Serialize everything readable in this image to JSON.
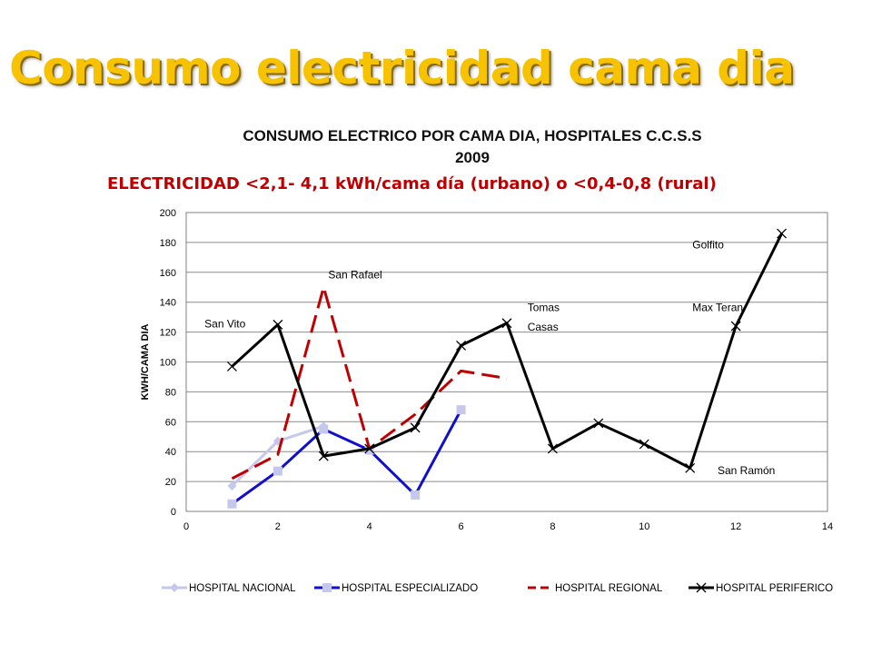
{
  "slide": {
    "title": "Consumo electricidad cama dia"
  },
  "chart_data": {
    "type": "line",
    "title_line1": "CONSUMO ELECTRICO POR CAMA DIA, HOSPITALES C.C.S.S",
    "title_line2": "2009",
    "subtitle": "ELECTRICIDAD  <2,1- 4,1 kWh/cama día (urbano) o <0,4-0,8 (rural)",
    "xlabel": "",
    "ylabel": "KWH/CAMA DIA",
    "xlim": [
      0,
      14
    ],
    "ylim": [
      0,
      200
    ],
    "xticks": [
      0,
      2,
      4,
      6,
      8,
      10,
      12,
      14
    ],
    "yticks": [
      0,
      20,
      40,
      60,
      80,
      100,
      120,
      140,
      160,
      180,
      200
    ],
    "grid": "horizontal",
    "legend_position": "bottom",
    "series": [
      {
        "name": "HOSPITAL NACIONAL",
        "color": "#c5c8ec",
        "dash": "solid",
        "marker": "diamond",
        "points": [
          [
            1,
            17
          ],
          [
            2,
            47
          ],
          [
            3,
            57
          ]
        ]
      },
      {
        "name": "HOSPITAL ESPECIALIZADO",
        "color": "#1010cc",
        "markerColor": "#c5c8ec",
        "dash": "solid",
        "marker": "square",
        "points": [
          [
            1,
            5
          ],
          [
            2,
            27
          ],
          [
            3,
            55
          ],
          [
            4,
            41
          ],
          [
            5,
            11
          ],
          [
            6,
            68
          ]
        ]
      },
      {
        "name": "HOSPITAL REGIONAL",
        "color": "#c00000",
        "dash": "dashed",
        "marker": "none",
        "points": [
          [
            1,
            22
          ],
          [
            2,
            38
          ],
          [
            3,
            150
          ],
          [
            4,
            42
          ],
          [
            5,
            65
          ],
          [
            6,
            94
          ],
          [
            7,
            89
          ]
        ]
      },
      {
        "name": "HOSPITAL PERIFERICO",
        "color": "#000000",
        "dash": "solid",
        "marker": "x",
        "points": [
          [
            1,
            97
          ],
          [
            2,
            125
          ],
          [
            3,
            37
          ],
          [
            4,
            42
          ],
          [
            5,
            56
          ],
          [
            6,
            111
          ],
          [
            7,
            126
          ],
          [
            8,
            42
          ],
          [
            9,
            59
          ],
          [
            10,
            45
          ],
          [
            11,
            29
          ],
          [
            12,
            124
          ],
          [
            13,
            186
          ]
        ]
      }
    ],
    "annotations": [
      {
        "text": "San Vito",
        "x": 0.4,
        "y": 123
      },
      {
        "text": "San Rafael",
        "x": 3.1,
        "y": 156
      },
      {
        "text": "Tomas",
        "x": 7.45,
        "y": 134
      },
      {
        "text": "Casas",
        "x": 7.45,
        "y": 121
      },
      {
        "text": "Golfito",
        "x": 11.05,
        "y": 176
      },
      {
        "text": "Max  Teran",
        "x": 11.05,
        "y": 134
      },
      {
        "text": "San Ramón",
        "x": 11.6,
        "y": 25
      }
    ]
  }
}
